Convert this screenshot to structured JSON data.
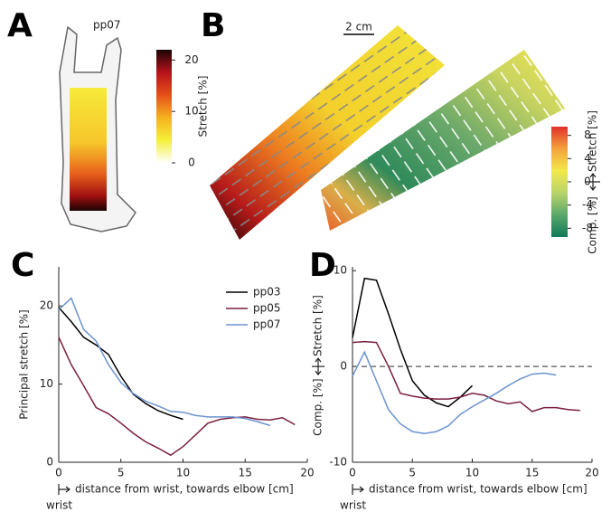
{
  "panel_labels": [
    "A",
    "B",
    "C",
    "D"
  ],
  "subject_label": "pp07",
  "scale_bar": "2 cm",
  "chart_data": [
    {
      "type": "colorbar",
      "label": "Stretch [%]",
      "lim": [
        0,
        22
      ],
      "ticks": [
        0,
        10,
        20
      ],
      "colormap": [
        "#ffffff",
        "#f5ef3a",
        "#f5b21e",
        "#e6501a",
        "#b5121b",
        "#1a0505"
      ]
    },
    {
      "type": "colorbar",
      "label_low": "Comp. [%]",
      "label_high": "Stretch [%]",
      "lim": [
        -9.5,
        9.5
      ],
      "ticks": [
        -8,
        -4,
        0,
        4,
        8
      ],
      "colormap": [
        "#0e7a5a",
        "#5aa86a",
        "#b9d46a",
        "#f2e94a",
        "#f5a23a",
        "#e0302a"
      ]
    },
    {
      "type": "line",
      "ylabel": "Principal stretch [%]",
      "xlabel": "distance from wrist, towards elbow [cm]",
      "x_annotation": "wrist",
      "xlim": [
        0,
        20
      ],
      "xticks": [
        0,
        5,
        10,
        15,
        20
      ],
      "ylim": [
        0,
        25
      ],
      "yticks": [
        0,
        10,
        20
      ],
      "legend": "upper right",
      "series": [
        {
          "name": "pp03",
          "color": "#000000",
          "x": [
            0,
            1,
            2,
            3,
            4,
            5,
            6,
            7,
            8,
            9,
            10
          ],
          "values": [
            19.8,
            18,
            16,
            15,
            13.8,
            11,
            8.7,
            7.5,
            6.6,
            6,
            5.5
          ]
        },
        {
          "name": "pp05",
          "color": "#7a1f3d",
          "x": [
            0,
            1,
            2,
            3,
            4,
            5,
            6,
            7,
            8,
            9,
            10,
            11,
            12,
            13,
            14,
            15,
            16,
            17,
            18,
            19
          ],
          "values": [
            16,
            12.5,
            9.8,
            7,
            6.2,
            5,
            3.7,
            2.6,
            1.8,
            0.9,
            2,
            3.5,
            5,
            5.5,
            5.7,
            5.8,
            5.5,
            5.4,
            5.7,
            4.8
          ]
        },
        {
          "name": "pp07",
          "color": "#6b93cf",
          "x": [
            0,
            1,
            2,
            3,
            4,
            5,
            6,
            7,
            8,
            9,
            10,
            11,
            12,
            13,
            14,
            15,
            16,
            17
          ],
          "values": [
            19.5,
            21,
            17,
            15.5,
            12.5,
            10.2,
            8.8,
            7.8,
            7.2,
            6.5,
            6.4,
            6,
            5.8,
            5.8,
            5.8,
            5.6,
            5.2,
            4.7
          ]
        }
      ]
    },
    {
      "type": "line",
      "ylabel_low": "Comp. [%]",
      "ylabel_high": "Stretch [%]",
      "xlabel": "distance from wrist, towards elbow [cm]",
      "x_annotation": "wrist",
      "xlim": [
        0,
        20
      ],
      "xticks": [
        0,
        5,
        10,
        15,
        20
      ],
      "ylim": [
        -10,
        10.4
      ],
      "yticks": [
        -10,
        0,
        10
      ],
      "reference_line": 0,
      "series": [
        {
          "color": "#000000",
          "x": [
            0,
            1,
            2,
            3,
            4,
            5,
            6,
            7,
            8,
            9,
            10
          ],
          "values": [
            3,
            9.2,
            9,
            5.5,
            1.8,
            -1.5,
            -3,
            -3.8,
            -4.2,
            -3.2,
            -2
          ]
        },
        {
          "color": "#7a1f3d",
          "x": [
            0,
            1,
            2,
            3,
            4,
            5,
            6,
            7,
            8,
            9,
            10,
            11,
            12,
            13,
            14,
            15,
            16,
            17,
            18,
            19
          ],
          "values": [
            2.5,
            2.6,
            2.5,
            0,
            -2.8,
            -3.1,
            -3.3,
            -3.4,
            -3.4,
            -3.2,
            -2.8,
            -3,
            -3.6,
            -3.9,
            -3.7,
            -4.7,
            -4.3,
            -4.3,
            -4.5,
            -4.6
          ]
        },
        {
          "color": "#6b93cf",
          "x": [
            0,
            1,
            2,
            3,
            4,
            5,
            6,
            7,
            8,
            9,
            10,
            11,
            12,
            13,
            14,
            15,
            16,
            17
          ],
          "values": [
            -1,
            1.5,
            -1.5,
            -4.5,
            -6,
            -6.8,
            -7,
            -6.8,
            -6.2,
            -5,
            -4.2,
            -3.5,
            -2.8,
            -2,
            -1.3,
            -0.8,
            -0.7,
            -0.9
          ]
        }
      ]
    }
  ]
}
